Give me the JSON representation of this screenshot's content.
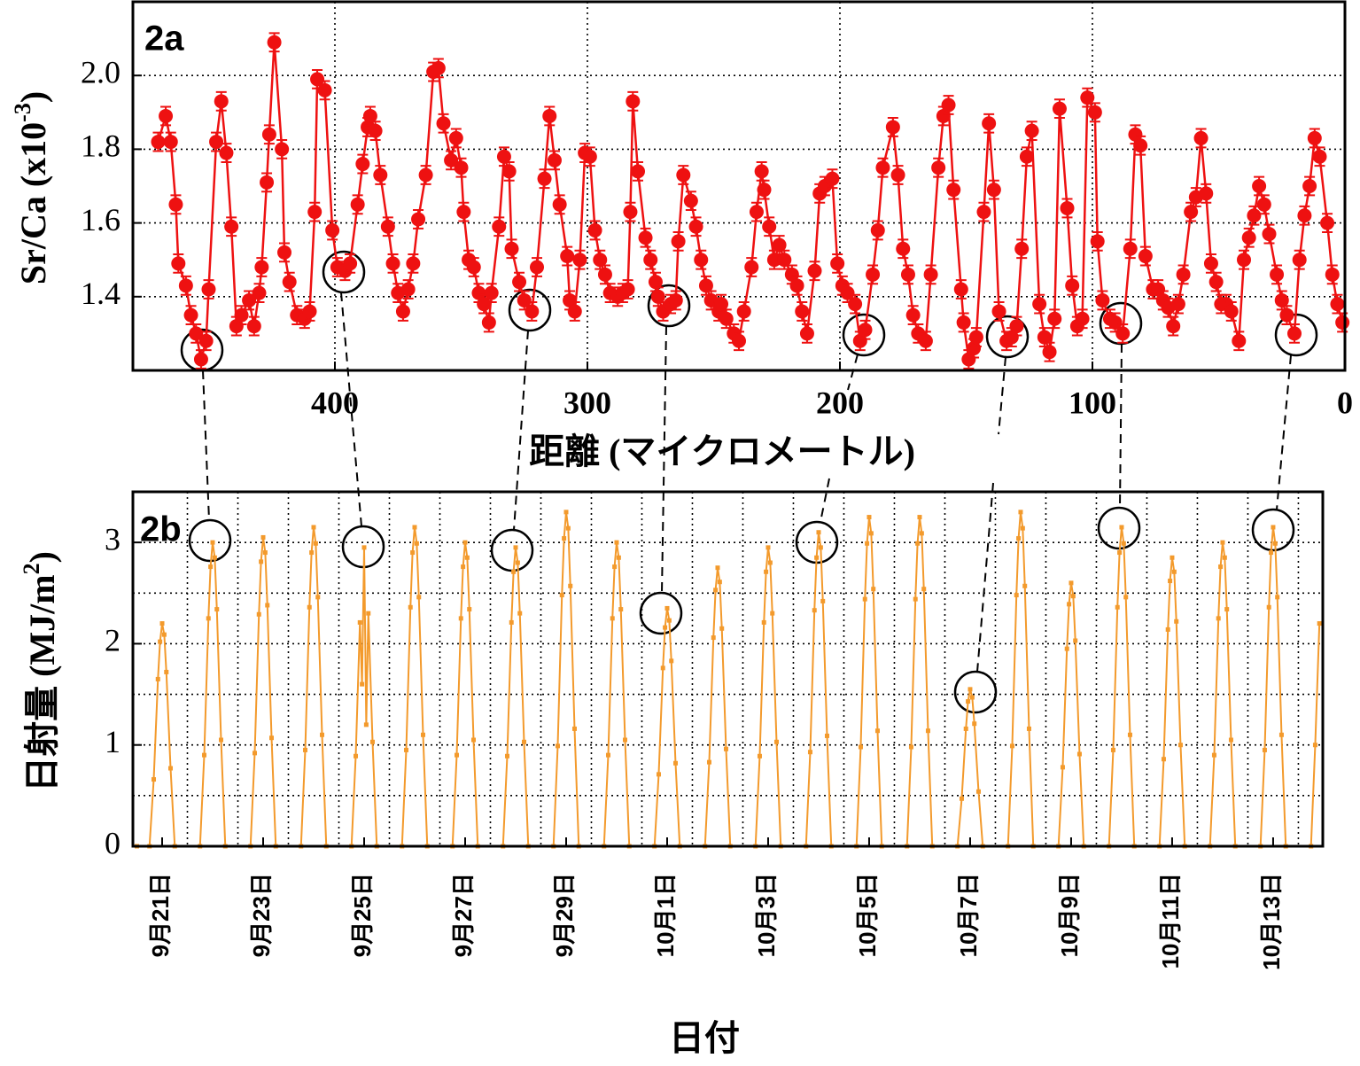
{
  "chart_data": [
    {
      "type": "line",
      "panel": "2a",
      "ylabel": [
        "Sr/Ca (x10",
        "-3",
        ")"
      ],
      "xlabel": "距離 (マイクロメートル)",
      "color": "#ee1111",
      "error": 0.025,
      "grid": true,
      "xlim": [
        480,
        0
      ],
      "ylim": [
        1.2,
        2.2
      ],
      "xticks": [
        400,
        300,
        200,
        100,
        0
      ],
      "yticks": [
        1.4,
        1.6,
        1.8,
        {
          "value": 2,
          "label": "2.0"
        }
      ],
      "x": [
        470,
        467,
        465,
        463,
        462,
        459,
        457,
        455,
        453,
        451,
        450,
        447,
        445,
        443,
        441,
        439,
        437,
        434,
        432,
        430,
        429,
        427,
        426,
        424,
        421,
        420,
        418,
        415,
        412,
        410,
        408,
        407,
        404,
        401,
        399,
        396,
        394,
        391,
        389,
        387,
        386,
        384,
        382,
        379,
        377,
        375,
        373,
        371,
        369,
        367,
        364,
        361,
        359,
        357,
        354,
        352,
        350,
        349,
        347,
        345,
        343,
        341,
        339,
        338,
        335,
        333,
        331,
        330,
        327,
        325,
        322,
        320,
        317,
        315,
        313,
        311,
        308,
        307,
        305,
        303,
        301,
        299,
        297,
        295,
        293,
        291,
        288,
        286,
        284,
        283,
        282,
        280,
        277,
        275,
        273,
        272,
        270,
        267,
        265,
        264,
        262,
        259,
        257,
        255,
        253,
        251,
        248,
        247,
        245,
        242,
        240,
        238,
        235,
        233,
        231,
        230,
        228,
        226,
        224,
        222,
        219,
        217,
        215,
        213,
        210,
        208,
        206,
        203,
        201,
        199,
        197,
        194,
        192,
        190,
        187,
        185,
        183,
        179,
        177,
        175,
        173,
        171,
        169,
        166,
        164,
        161,
        159,
        157,
        155,
        152,
        151,
        149,
        147,
        146,
        143,
        141,
        139,
        137,
        134,
        132,
        130,
        128,
        126,
        124,
        121,
        119,
        117,
        115,
        113,
        110,
        108,
        106,
        104,
        102,
        99,
        98,
        96,
        93,
        91,
        88,
        85,
        83,
        81,
        79,
        76,
        74,
        72,
        70,
        68,
        66,
        64,
        61,
        59,
        57,
        55,
        53,
        51,
        49,
        47,
        45,
        42,
        40,
        38,
        36,
        34,
        32,
        30,
        27,
        25,
        23,
        20,
        18,
        16,
        14,
        12,
        10,
        7,
        5,
        3,
        1
      ],
      "values": [
        1.82,
        1.89,
        1.82,
        1.65,
        1.49,
        1.43,
        1.35,
        1.3,
        1.23,
        1.28,
        1.42,
        1.82,
        1.93,
        1.79,
        1.59,
        1.32,
        1.35,
        1.39,
        1.32,
        1.41,
        1.48,
        1.71,
        1.84,
        2.09,
        1.8,
        1.52,
        1.44,
        1.35,
        1.34,
        1.36,
        1.63,
        1.99,
        1.96,
        1.58,
        1.48,
        1.47,
        1.49,
        1.65,
        1.76,
        1.86,
        1.89,
        1.85,
        1.73,
        1.59,
        1.49,
        1.41,
        1.36,
        1.42,
        1.49,
        1.61,
        1.73,
        2.01,
        2.02,
        1.87,
        1.77,
        1.83,
        1.75,
        1.63,
        1.5,
        1.48,
        1.41,
        1.38,
        1.33,
        1.41,
        1.59,
        1.78,
        1.74,
        1.53,
        1.44,
        1.39,
        1.36,
        1.48,
        1.72,
        1.89,
        1.77,
        1.65,
        1.51,
        1.39,
        1.36,
        1.5,
        1.79,
        1.78,
        1.58,
        1.5,
        1.46,
        1.41,
        1.4,
        1.41,
        1.42,
        1.63,
        1.93,
        1.74,
        1.56,
        1.5,
        1.44,
        1.4,
        1.36,
        1.38,
        1.39,
        1.55,
        1.73,
        1.66,
        1.59,
        1.5,
        1.43,
        1.39,
        1.36,
        1.38,
        1.34,
        1.3,
        1.28,
        1.36,
        1.48,
        1.63,
        1.74,
        1.69,
        1.59,
        1.5,
        1.54,
        1.5,
        1.46,
        1.43,
        1.36,
        1.3,
        1.47,
        1.68,
        1.7,
        1.72,
        1.49,
        1.43,
        1.41,
        1.38,
        1.28,
        1.31,
        1.46,
        1.58,
        1.75,
        1.86,
        1.73,
        1.53,
        1.46,
        1.35,
        1.3,
        1.28,
        1.46,
        1.75,
        1.89,
        1.92,
        1.69,
        1.42,
        1.33,
        1.23,
        1.26,
        1.29,
        1.63,
        1.87,
        1.69,
        1.36,
        1.28,
        1.29,
        1.32,
        1.53,
        1.78,
        1.85,
        1.38,
        1.29,
        1.25,
        1.34,
        1.91,
        1.64,
        1.43,
        1.32,
        1.34,
        1.94,
        1.9,
        1.55,
        1.39,
        1.34,
        1.33,
        1.3,
        1.53,
        1.84,
        1.81,
        1.51,
        1.42,
        1.42,
        1.39,
        1.37,
        1.32,
        1.38,
        1.46,
        1.63,
        1.67,
        1.83,
        1.68,
        1.49,
        1.44,
        1.38,
        1.38,
        1.36,
        1.28,
        1.5,
        1.56,
        1.62,
        1.7,
        1.65,
        1.57,
        1.46,
        1.39,
        1.35,
        1.3,
        1.5,
        1.62,
        1.7,
        1.83,
        1.78,
        1.6,
        1.46,
        1.38,
        1.33
      ]
    },
    {
      "type": "line",
      "panel": "2b",
      "ylabel": [
        "日射量 (MJ/m",
        "2",
        ")"
      ],
      "xlabel": "日付",
      "color": "#f39a2c",
      "grid": true,
      "xlim": [
        -1.9,
        563.6
      ],
      "ylim": [
        0,
        3.5
      ],
      "yticks": [
        0,
        1,
        2,
        3
      ],
      "ygrid": [
        0.5,
        1.5,
        2.5
      ],
      "xgrid": [
        24,
        48,
        72,
        96,
        120,
        144,
        168,
        192,
        216,
        240,
        264,
        288,
        312,
        336,
        360,
        384,
        408,
        432,
        456,
        480,
        504,
        528,
        552
      ],
      "xticks": [
        {
          "value": 12,
          "label": "9月21日"
        },
        {
          "value": 60,
          "label": "9月23日"
        },
        {
          "value": 108,
          "label": "9月25日"
        },
        {
          "value": 156,
          "label": "9月27日"
        },
        {
          "value": 204,
          "label": "9月29日"
        },
        {
          "value": 252,
          "label": "10月1日"
        },
        {
          "value": 300,
          "label": "10月3日"
        },
        {
          "value": 348,
          "label": "10月5日"
        },
        {
          "value": 396,
          "label": "10月7日"
        },
        {
          "value": 444,
          "label": "10月9日"
        },
        {
          "value": 492,
          "label": "10月11日"
        },
        {
          "value": 540,
          "label": "10月13日"
        }
      ],
      "x": [
        0,
        6,
        8,
        10,
        11,
        12,
        13,
        14,
        16,
        18,
        30,
        32,
        34,
        35,
        36,
        37,
        38,
        40,
        42,
        54,
        56,
        58,
        59,
        60,
        61,
        62,
        64,
        66,
        78,
        80,
        82,
        83,
        84,
        85,
        86,
        88,
        90,
        102,
        104,
        106,
        107,
        108,
        109,
        110,
        112,
        114,
        126,
        128,
        130,
        131,
        132,
        133,
        134,
        136,
        138,
        150,
        152,
        154,
        155,
        156,
        157,
        158,
        160,
        162,
        174,
        176,
        178,
        179,
        180,
        181,
        182,
        184,
        186,
        198,
        200,
        202,
        203,
        204,
        205,
        206,
        208,
        210,
        222,
        224,
        226,
        227,
        228,
        229,
        230,
        232,
        234,
        246,
        248,
        250,
        251,
        252,
        253,
        254,
        256,
        258,
        270,
        272,
        274,
        275,
        276,
        277,
        278,
        280,
        282,
        294,
        296,
        298,
        299,
        300,
        301,
        302,
        304,
        306,
        318,
        320,
        322,
        323,
        324,
        325,
        326,
        328,
        330,
        342,
        344,
        346,
        347,
        348,
        349,
        350,
        352,
        354,
        366,
        368,
        370,
        371,
        372,
        373,
        374,
        376,
        378,
        390,
        392,
        394,
        395,
        396,
        397,
        398,
        400,
        402,
        414,
        416,
        418,
        419,
        420,
        421,
        422,
        424,
        426,
        438,
        440,
        442,
        443,
        444,
        445,
        446,
        448,
        450,
        462,
        464,
        466,
        467,
        468,
        469,
        470,
        472,
        474,
        486,
        488,
        490,
        491,
        492,
        493,
        494,
        496,
        498,
        510,
        512,
        514,
        515,
        516,
        517,
        518,
        520,
        522,
        534,
        536,
        538,
        539,
        540,
        541,
        542,
        544,
        546,
        558,
        560,
        562
      ],
      "values": [
        0,
        0,
        0.66,
        1.65,
        2.02,
        2.2,
        2.09,
        1.72,
        0.77,
        0,
        0,
        0.9,
        2.25,
        2.76,
        3,
        2.85,
        2.34,
        1.05,
        0,
        0,
        0.92,
        2.29,
        2.81,
        3.05,
        2.9,
        2.38,
        1.07,
        0,
        0,
        0.95,
        2.36,
        2.9,
        3.15,
        2.99,
        2.46,
        1.1,
        0,
        0,
        0.89,
        2.21,
        1.6,
        2.95,
        1.2,
        2.3,
        1.03,
        0,
        0,
        0.95,
        2.36,
        2.9,
        3.15,
        2.99,
        2.46,
        1.1,
        0,
        0,
        0.9,
        2.25,
        2.76,
        3,
        2.85,
        2.34,
        1.05,
        0,
        0,
        0.89,
        2.21,
        2.71,
        2.95,
        2.8,
        2.3,
        1.03,
        0,
        0,
        0.99,
        2.48,
        3.04,
        3.3,
        3.14,
        2.57,
        1.16,
        0,
        0,
        0.9,
        2.25,
        2.76,
        3,
        2.85,
        2.34,
        1.05,
        0,
        0,
        0.71,
        1.76,
        2.16,
        2.35,
        2.23,
        1.83,
        0.82,
        0,
        0,
        0.83,
        2.06,
        2.53,
        2.75,
        2.61,
        2.15,
        0.96,
        0,
        0,
        0.89,
        2.21,
        2.71,
        2.95,
        2.8,
        2.3,
        1.03,
        0,
        0,
        0.93,
        2.33,
        2.85,
        3.1,
        2.95,
        2.42,
        1.09,
        0,
        0,
        0.98,
        2.44,
        2.99,
        3.25,
        3.09,
        2.54,
        1.14,
        0,
        0,
        0.98,
        2.44,
        2.99,
        3.25,
        3.09,
        2.54,
        1.14,
        0,
        0,
        0.47,
        1.16,
        1.43,
        1.55,
        1.47,
        1.21,
        0.54,
        0,
        0,
        0.99,
        2.48,
        3.04,
        3.3,
        3.14,
        2.57,
        1.16,
        0,
        0,
        0.78,
        1.95,
        2.39,
        2.6,
        2.47,
        2.03,
        0.91,
        0,
        0,
        0.95,
        2.36,
        2.9,
        3.15,
        2.99,
        2.46,
        1.1,
        0,
        0,
        0.86,
        2.14,
        2.62,
        2.85,
        2.71,
        2.22,
        1,
        0,
        0,
        0.9,
        2.25,
        2.76,
        3,
        2.85,
        2.34,
        1.05,
        0,
        0,
        0.95,
        2.36,
        2.9,
        3.15,
        2.99,
        2.46,
        1.1,
        0,
        0,
        1,
        2.2
      ]
    }
  ]
}
